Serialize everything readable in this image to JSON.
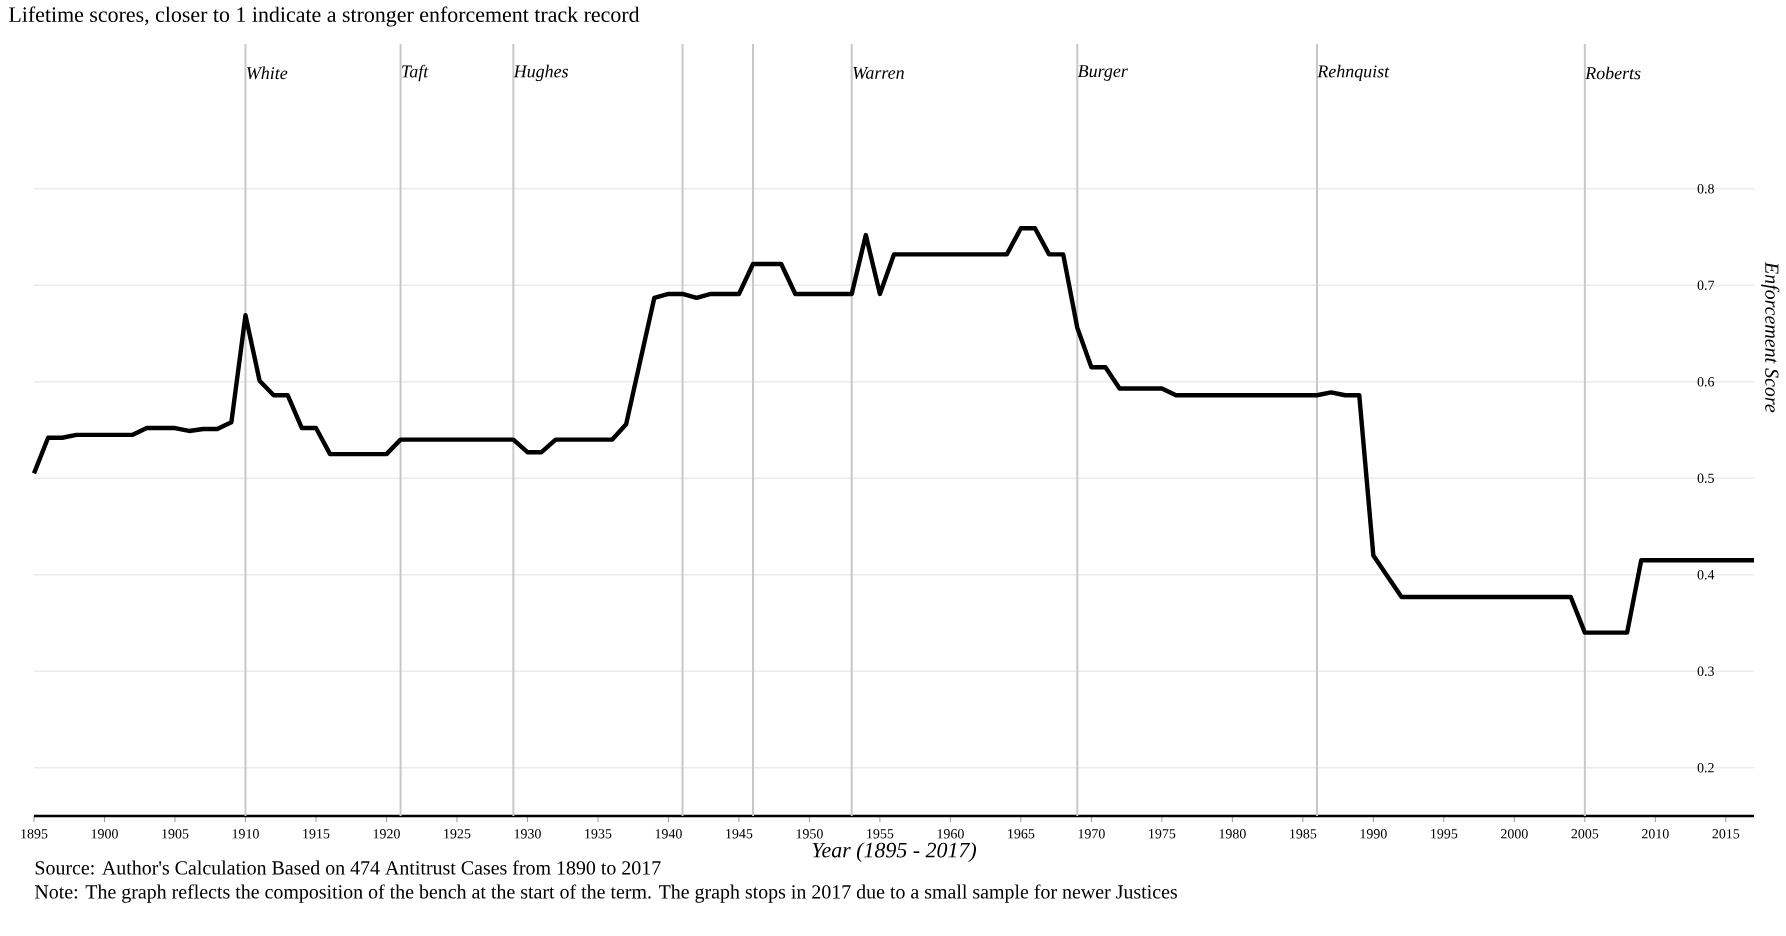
{
  "chart_data": {
    "type": "line",
    "title": "Lifetime scores, closer to 1  indicate a stronger enforcement track record",
    "xlabel": "Year (1895 - 2017)",
    "ylabel": "Enforcement Score",
    "xlim": [
      1895,
      2017
    ],
    "ylim": [
      0.15,
      0.95
    ],
    "xticks": [
      1895,
      1900,
      1905,
      1910,
      1915,
      1920,
      1925,
      1930,
      1935,
      1940,
      1945,
      1950,
      1955,
      1960,
      1965,
      1970,
      1975,
      1980,
      1985,
      1990,
      1995,
      2000,
      2005,
      2010,
      2015
    ],
    "yticks": [
      0.2,
      0.3,
      0.4,
      0.5,
      0.6,
      0.7,
      0.8
    ],
    "grid": "y",
    "marker": "none",
    "line_style": "solid",
    "series": [
      {
        "color": "#000000",
        "x": [
          1895,
          1896,
          1897,
          1898,
          1902,
          1903,
          1905,
          1906,
          1907,
          1908,
          1909,
          1910,
          1911,
          1912,
          1913,
          1914,
          1915,
          1916,
          1920,
          1921,
          1929,
          1930,
          1931,
          1932,
          1936,
          1937,
          1939,
          1940,
          1941,
          1942,
          1943,
          1945,
          1946,
          1948,
          1949,
          1953,
          1954,
          1955,
          1956,
          1964,
          1965,
          1966,
          1967,
          1968,
          1969,
          1970,
          1971,
          1972,
          1975,
          1976,
          1986,
          1987,
          1988,
          1989,
          1990,
          1992,
          2004,
          2005,
          2008,
          2009,
          2017
        ],
        "values": [
          0.505,
          0.542,
          0.542,
          0.545,
          0.545,
          0.552,
          0.552,
          0.549,
          0.551,
          0.551,
          0.558,
          0.669,
          0.601,
          0.586,
          0.586,
          0.552,
          0.552,
          0.525,
          0.525,
          0.54,
          0.54,
          0.527,
          0.527,
          0.54,
          0.54,
          0.556,
          0.687,
          0.691,
          0.691,
          0.687,
          0.691,
          0.691,
          0.722,
          0.722,
          0.691,
          0.691,
          0.752,
          0.691,
          0.732,
          0.732,
          0.759,
          0.759,
          0.732,
          0.732,
          0.656,
          0.615,
          0.615,
          0.593,
          0.593,
          0.586,
          0.586,
          0.589,
          0.586,
          0.586,
          0.42,
          0.377,
          0.377,
          0.34,
          0.34,
          0.415,
          0.415
        ]
      }
    ],
    "ref_lines": [
      {
        "axis": "x",
        "value": 1910,
        "label": "White",
        "color": "#c8c8c8"
      },
      {
        "axis": "x",
        "value": 1921,
        "label": "Taft",
        "color": "#c8c8c8"
      },
      {
        "axis": "x",
        "value": 1929,
        "label": "Hughes",
        "color": "#c8c8c8"
      },
      {
        "axis": "x",
        "value": 1941,
        "color": "#c8c8c8"
      },
      {
        "axis": "x",
        "value": 1946,
        "color": "#c8c8c8"
      },
      {
        "axis": "x",
        "value": 1953,
        "label": "Warren",
        "color": "#c8c8c8"
      },
      {
        "axis": "x",
        "value": 1969,
        "label": "Burger",
        "color": "#c8c8c8"
      },
      {
        "axis": "x",
        "value": 1986,
        "label": "Rehnquist",
        "color": "#c8c8c8"
      },
      {
        "axis": "x",
        "value": 2005,
        "label": "Roberts",
        "color": "#c8c8c8"
      }
    ],
    "annotations": [
      "Source: Author's Calculation Based on 474 Antitrust Cases from 1890 to 2017",
      "Note: The graph reflects the composition of the bench at the start of the term. The graph stops in 2017 due to a small sample for newer Justices"
    ]
  }
}
